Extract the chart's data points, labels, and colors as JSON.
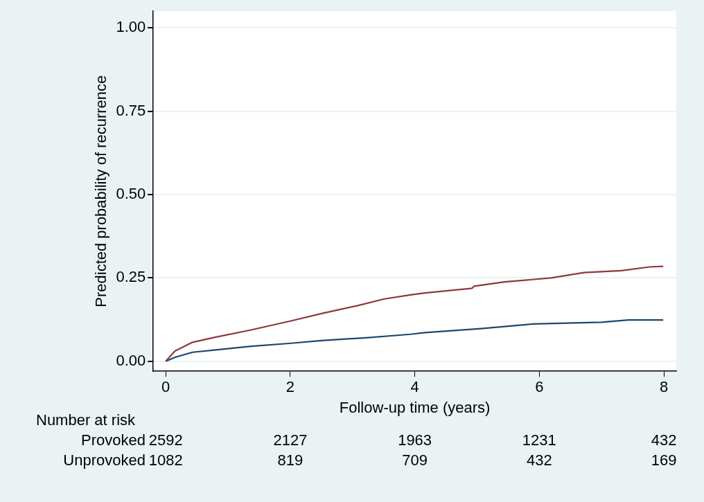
{
  "chart_data": {
    "type": "line",
    "xlabel": "Follow-up time (years)",
    "ylabel": "Predicted probability of recurrence",
    "xlim": [
      -0.2,
      8.2
    ],
    "xticks": [
      0,
      2,
      4,
      6,
      8
    ],
    "ylim": [
      -0.03,
      1.05
    ],
    "yticks": [
      {
        "value": 0,
        "label": "0.00"
      },
      {
        "value": 0.25,
        "label": "0.25"
      },
      {
        "value": 0.5,
        "label": "0.50"
      },
      {
        "value": 0.75,
        "label": "0.75"
      },
      {
        "value": 1,
        "label": "1.00"
      }
    ],
    "grid": "y",
    "legend": false,
    "marker": "none",
    "line_style": "solid",
    "series": [
      {
        "color": "#90353b",
        "x": [
          0,
          0.15,
          0.43,
          0.79,
          1.37,
          2.01,
          2.5,
          3.06,
          3.51,
          3.93,
          4.16,
          4.92,
          4.95,
          5.44,
          6.19,
          6.72,
          7.32,
          7.77,
          7.99
        ],
        "values": [
          0,
          0.031,
          0.057,
          0.072,
          0.094,
          0.121,
          0.143,
          0.166,
          0.187,
          0.199,
          0.205,
          0.219,
          0.225,
          0.238,
          0.25,
          0.266,
          0.272,
          0.283,
          0.285
        ]
      },
      {
        "color": "#1a476f",
        "x": [
          0,
          0.15,
          0.43,
          0.8,
          1.37,
          2.01,
          2.5,
          3.25,
          3.93,
          4.16,
          5.06,
          5.9,
          7.0,
          7.43,
          7.99
        ],
        "values": [
          0,
          0.012,
          0.027,
          0.034,
          0.045,
          0.054,
          0.062,
          0.071,
          0.081,
          0.086,
          0.098,
          0.112,
          0.117,
          0.124,
          0.124
        ]
      }
    ],
    "annotations": [
      "Number at risk",
      "Provoked",
      "2592",
      "2127",
      "1963",
      "1231",
      "432",
      "Unprovoked",
      "1082",
      "819",
      "709",
      "432",
      "169"
    ]
  }
}
